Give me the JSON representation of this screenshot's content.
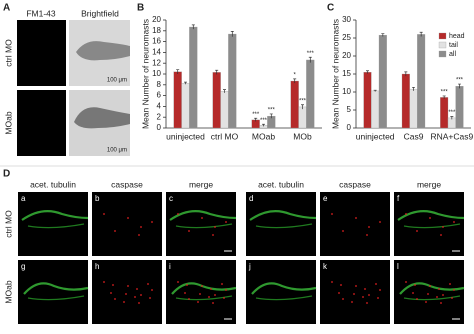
{
  "panel_a": {
    "letter": "A",
    "columns": [
      "FM1-43",
      "Brightfield"
    ],
    "rows": [
      "ctrl MO",
      "MOab"
    ],
    "scale_bars": [
      "100 μm",
      "100 μm"
    ]
  },
  "chart_data": [
    {
      "letter": "B",
      "type": "bar",
      "y_label": "Mean Number of neuromasts",
      "categories": [
        "uninjected",
        "ctrl MO",
        "MOab",
        "MOb"
      ],
      "series": [
        {
          "name": "head",
          "color": "#b52a2a",
          "values": [
            10.4,
            10.3,
            1.5,
            8.7
          ],
          "errors": [
            0.4,
            0.4,
            0.3,
            0.4
          ],
          "annotations": [
            null,
            null,
            "***",
            "*"
          ]
        },
        {
          "name": "tail",
          "color": "#e2e2e2",
          "values": [
            8.3,
            6.8,
            0.5,
            3.9
          ],
          "errors": [
            0.2,
            0.3,
            0.2,
            0.4
          ],
          "annotations": [
            null,
            null,
            "***",
            "***"
          ]
        },
        {
          "name": "all",
          "color": "#8c8c8c",
          "values": [
            18.7,
            17.4,
            2.2,
            12.6
          ],
          "errors": [
            0.4,
            0.5,
            0.4,
            0.5
          ],
          "annotations": [
            null,
            null,
            "***",
            "***"
          ]
        }
      ],
      "ylim": [
        0,
        20
      ],
      "yticks": [
        0,
        2,
        4,
        6,
        8,
        10,
        12,
        14,
        16,
        18,
        20
      ]
    },
    {
      "letter": "C",
      "type": "bar",
      "y_label": "Mean Number of neuromasts",
      "categories": [
        "uninjected",
        "Cas9",
        "RNA+Cas9"
      ],
      "series": [
        {
          "name": "head",
          "color": "#b52a2a",
          "values": [
            15.5,
            15.0,
            8.5
          ],
          "errors": [
            0.4,
            0.6,
            0.4
          ],
          "annotations": [
            null,
            null,
            "***"
          ]
        },
        {
          "name": "tail",
          "color": "#e2e2e2",
          "values": [
            10.3,
            10.8,
            2.8
          ],
          "errors": [
            0.2,
            0.5,
            0.4
          ],
          "annotations": [
            null,
            null,
            "***"
          ]
        },
        {
          "name": "all",
          "color": "#8c8c8c",
          "values": [
            25.8,
            26.0,
            11.6
          ],
          "errors": [
            0.4,
            0.6,
            0.6
          ],
          "annotations": [
            null,
            null,
            "***"
          ]
        }
      ],
      "ylim": [
        0,
        30
      ],
      "yticks": [
        0,
        5,
        10,
        15,
        20,
        25,
        30
      ],
      "legend": "upper right"
    }
  ],
  "panel_d": {
    "letter": "D",
    "columns": [
      "acet. tubulin",
      "caspase",
      "merge",
      "acet. tubulin",
      "caspase",
      "merge"
    ],
    "rows": [
      "ctrl MO",
      "MOab"
    ],
    "panels": [
      "a",
      "b",
      "c",
      "d",
      "e",
      "f",
      "g",
      "h",
      "i",
      "j",
      "k",
      "l"
    ]
  }
}
